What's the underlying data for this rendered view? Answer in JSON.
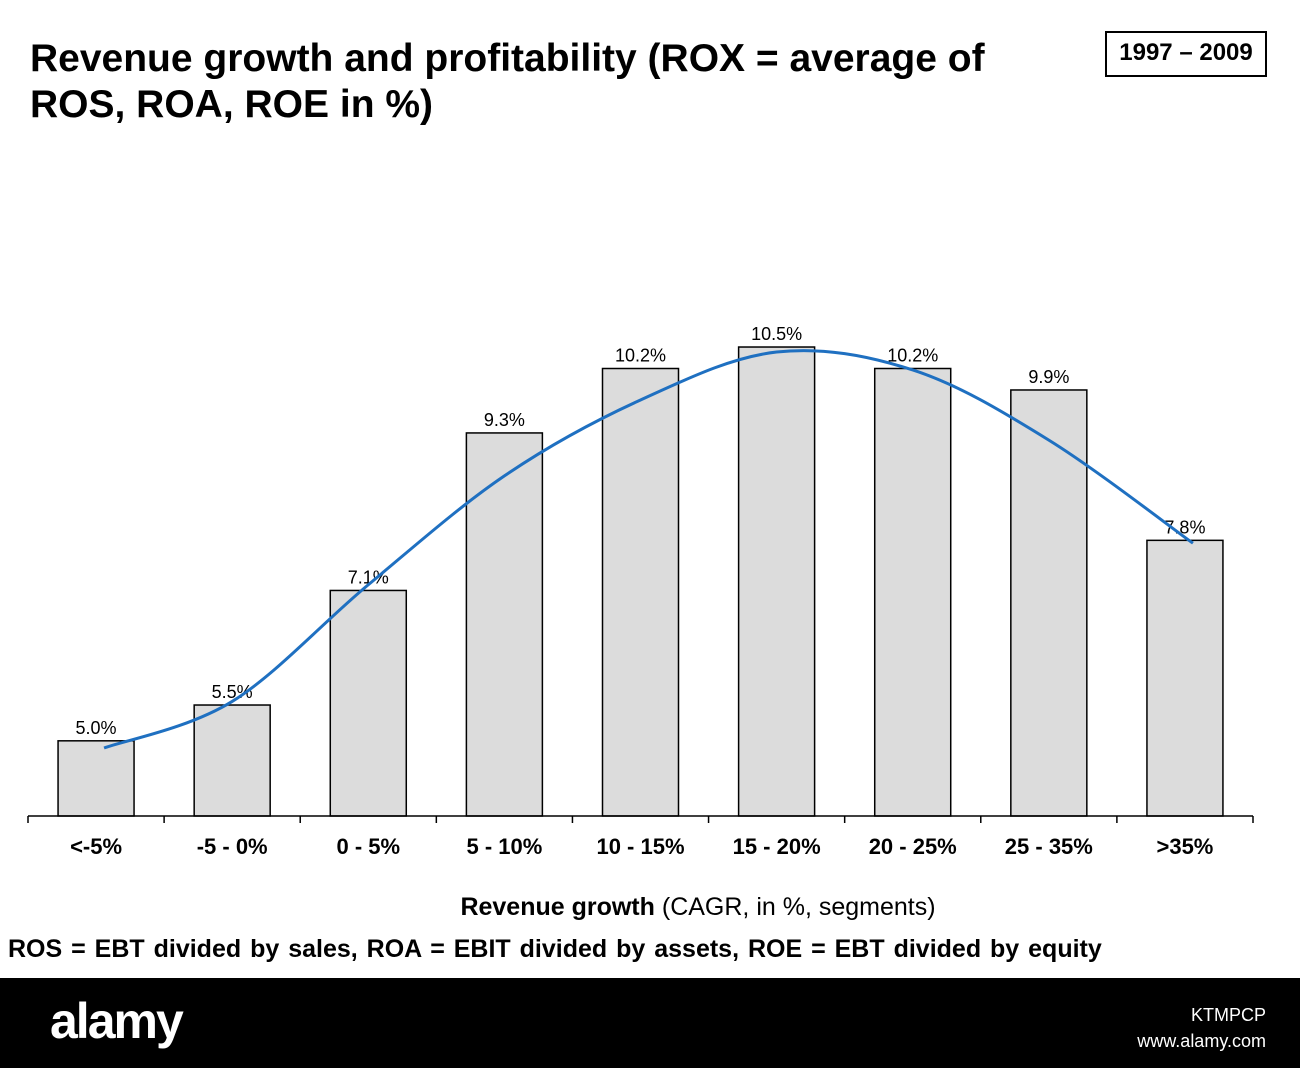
{
  "title": "Revenue growth and profitability  (ROX = average of ROS, ROA, ROE in %)",
  "period": "1997 – 2009",
  "footnote": "ROS = EBT divided by  sales,  ROA = EBIT divided by assets,  ROE = EBT divided by  equity",
  "footer": {
    "logo": "alamy",
    "image_code": "KTMPCP",
    "site": "www.alamy.com"
  },
  "colors": {
    "bar": "#dcdcdc",
    "trend": "#1f70c1"
  },
  "chart_data": {
    "type": "bar",
    "title": "Revenue growth and profitability (ROX = average of ROS, ROA, ROE in %)",
    "xlabel_bold": "Revenue growth",
    "xlabel_rest": " (CAGR, in %, segments)",
    "ylabel": "",
    "categories": [
      "<-5%",
      "-5 - 0%",
      "0 - 5%",
      "5 - 10%",
      "10 - 15%",
      "15 - 20%",
      "20 - 25%",
      "25 - 35%",
      ">35%"
    ],
    "values": [
      5.0,
      5.5,
      7.1,
      9.3,
      10.2,
      10.5,
      10.2,
      9.9,
      7.8
    ],
    "labels": [
      "5.0%",
      "5.5%",
      "7.1%",
      "9.3%",
      "10.2%",
      "10.5%",
      "10.2%",
      "9.9%",
      "7.8%"
    ],
    "trendline": {
      "type": "polynomial",
      "values": [
        4.9,
        5.55,
        7.18,
        8.7,
        9.76,
        10.43,
        10.18,
        9.2,
        7.76
      ]
    },
    "ylim": [
      3.95,
      11
    ],
    "grid": false,
    "legend": "none"
  }
}
